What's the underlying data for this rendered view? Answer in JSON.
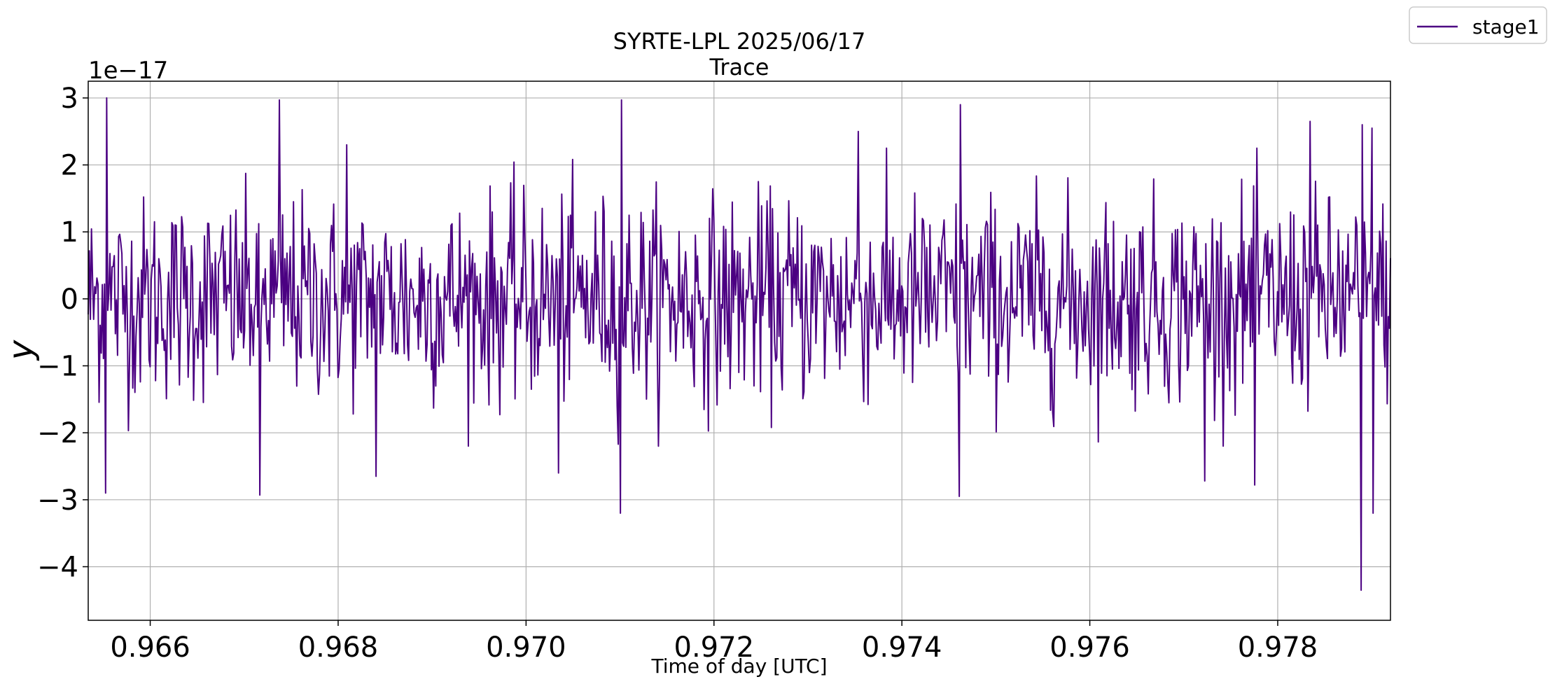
{
  "chart_data": {
    "type": "line",
    "title": "SYRTE-LPL 2025/06/17",
    "subtitle": "Trace",
    "xlabel": "Time of day [UTC]",
    "ylabel": "y",
    "y_offset_label": "1e−17",
    "y_scale_factor": 1e-17,
    "xlim": [
      0.96534,
      0.9792
    ],
    "ylim": [
      -4.8,
      3.25
    ],
    "x_ticks": [
      0.966,
      0.968,
      0.97,
      0.972,
      0.974,
      0.976,
      0.978
    ],
    "x_tick_labels": [
      "0.966",
      "0.968",
      "0.970",
      "0.972",
      "0.974",
      "0.976",
      "0.978"
    ],
    "y_ticks": [
      -4,
      -3,
      -2,
      -1,
      0,
      1,
      2,
      3
    ],
    "y_tick_labels": [
      "−4",
      "−3",
      "−2",
      "−1",
      "0",
      "1",
      "2",
      "3"
    ],
    "grid": true,
    "legend_position": "outside top-right",
    "series": [
      {
        "name": "stage1",
        "color": "#4b0082",
        "x_start": 0.96534,
        "x_end": 0.9792,
        "n_points": 1200,
        "noise_sigma": 0.75,
        "spikes": [
          {
            "x": 0.96554,
            "y": 3.0
          },
          {
            "x": 0.96552,
            "y": -2.9
          },
          {
            "x": 0.96738,
            "y": 2.97
          },
          {
            "x": 0.96717,
            "y": -2.93
          },
          {
            "x": 0.96809,
            "y": 2.3
          },
          {
            "x": 0.9684,
            "y": -2.65
          },
          {
            "x": 0.97101,
            "y": 2.97
          },
          {
            "x": 0.971,
            "y": -3.2
          },
          {
            "x": 0.97035,
            "y": -2.6
          },
          {
            "x": 0.97353,
            "y": 2.5
          },
          {
            "x": 0.97462,
            "y": 2.9
          },
          {
            "x": 0.97461,
            "y": -2.95
          },
          {
            "x": 0.97722,
            "y": -2.72
          },
          {
            "x": 0.97776,
            "y": -2.78
          },
          {
            "x": 0.97835,
            "y": 2.65
          },
          {
            "x": 0.9789,
            "y": 2.6
          },
          {
            "x": 0.97889,
            "y": -4.35
          },
          {
            "x": 0.979,
            "y": 2.55
          },
          {
            "x": 0.97901,
            "y": -3.2
          }
        ]
      }
    ]
  }
}
